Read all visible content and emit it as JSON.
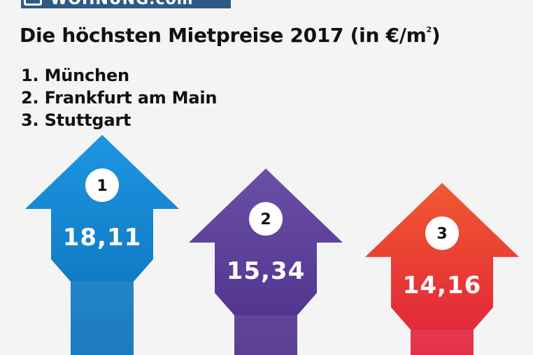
{
  "logo": {
    "text": "WOHNUNG.com"
  },
  "title": {
    "text": "Die höchsten Mietpreise 2017 (in €/m",
    "superscript": "2",
    "suffix": ")"
  },
  "ranking": [
    "1. München",
    "2. Frankfurt am Main",
    "3. Stuttgart"
  ],
  "chart_data": {
    "type": "bar",
    "title": "Die höchsten Mietpreise 2017 (in €/m²)",
    "categories": [
      "München",
      "Frankfurt am Main",
      "Stuttgart"
    ],
    "ranks": [
      "1",
      "2",
      "3"
    ],
    "values": [
      18.11,
      15.34,
      14.16
    ],
    "value_labels": [
      "18,11",
      "15,34",
      "14,16"
    ],
    "colors": {
      "bar1_top": "#1e95e0",
      "bar1_bottom": "#0a6fb8",
      "bar2_top": "#6a4fa6",
      "bar2_bottom": "#4d2f8a",
      "bar3_top": "#f05a30",
      "bar3_bottom": "#e0203c"
    }
  }
}
